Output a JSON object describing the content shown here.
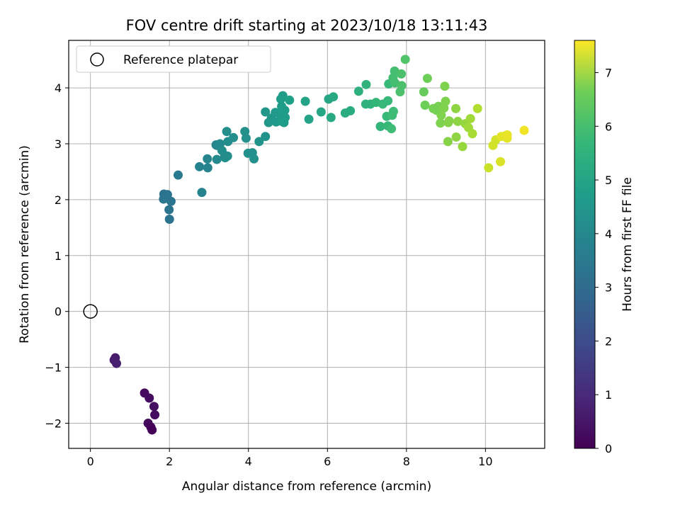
{
  "chart_data": {
    "type": "scatter",
    "title": "FOV centre drift starting at 2023/10/18 13:11:43",
    "xlabel": "Angular distance from reference (arcmin)",
    "ylabel": "Rotation from reference (arcmin)",
    "xlim": [
      -0.55,
      11.5
    ],
    "ylim": [
      -2.45,
      4.85
    ],
    "xticks": [
      0,
      2,
      4,
      6,
      8,
      10
    ],
    "yticks": [
      -2,
      -1,
      0,
      1,
      2,
      3,
      4
    ],
    "grid": true,
    "legend": {
      "placement": "top-left",
      "entries": [
        "Reference platepar"
      ]
    },
    "reference_point": {
      "x": 0,
      "y": 0,
      "label": "Reference platepar"
    },
    "colorbar": {
      "label": "Hours from first FF file",
      "colormap": "viridis",
      "range": [
        0,
        7.6
      ],
      "ticks": [
        0,
        1,
        2,
        3,
        4,
        5,
        6,
        7
      ]
    },
    "points": [
      [
        0.63,
        -0.83,
        0.55
      ],
      [
        0.6,
        -0.87,
        0.6
      ],
      [
        0.66,
        -0.93,
        0.65
      ],
      [
        1.37,
        -1.46,
        0.2
      ],
      [
        1.49,
        -1.55,
        0.25
      ],
      [
        1.61,
        -1.7,
        0.3
      ],
      [
        1.63,
        -1.85,
        0.25
      ],
      [
        1.46,
        -2.0,
        0.15
      ],
      [
        1.53,
        -2.07,
        0.1
      ],
      [
        1.56,
        -2.12,
        0.05
      ],
      [
        1.86,
        2.1,
        2.9
      ],
      [
        1.95,
        2.09,
        2.9
      ],
      [
        1.85,
        2.01,
        2.95
      ],
      [
        2.04,
        1.97,
        2.95
      ],
      [
        1.99,
        1.82,
        2.9
      ],
      [
        2.0,
        1.65,
        2.9
      ],
      [
        2.22,
        2.44,
        3.1
      ],
      [
        2.82,
        2.13,
        3.4
      ],
      [
        2.76,
        2.59,
        3.4
      ],
      [
        2.97,
        2.57,
        3.45
      ],
      [
        2.96,
        2.73,
        3.5
      ],
      [
        3.18,
        2.98,
        3.5
      ],
      [
        3.2,
        2.97,
        3.5
      ],
      [
        3.28,
        3.0,
        3.6
      ],
      [
        3.2,
        2.72,
        3.6
      ],
      [
        3.4,
        2.79,
        3.7
      ],
      [
        3.33,
        2.88,
        3.7
      ],
      [
        3.41,
        2.75,
        3.7
      ],
      [
        3.47,
        2.78,
        3.7
      ],
      [
        3.48,
        3.04,
        3.7
      ],
      [
        3.45,
        3.22,
        3.75
      ],
      [
        3.62,
        3.11,
        3.75
      ],
      [
        3.91,
        3.22,
        3.8
      ],
      [
        3.94,
        3.1,
        3.8
      ],
      [
        3.99,
        2.83,
        3.8
      ],
      [
        4.1,
        2.84,
        3.8
      ],
      [
        4.14,
        2.73,
        3.8
      ],
      [
        4.27,
        3.04,
        3.9
      ],
      [
        4.43,
        3.13,
        3.9
      ],
      [
        4.43,
        3.57,
        4.0
      ],
      [
        4.51,
        3.38,
        4.0
      ],
      [
        4.58,
        3.46,
        4.0
      ],
      [
        4.68,
        3.56,
        4.1
      ],
      [
        4.7,
        3.39,
        4.1
      ],
      [
        4.82,
        3.5,
        4.1
      ],
      [
        4.85,
        3.4,
        4.2
      ],
      [
        4.9,
        3.38,
        4.2
      ],
      [
        4.88,
        3.58,
        4.2
      ],
      [
        4.84,
        3.67,
        4.2
      ],
      [
        4.82,
        3.8,
        4.2
      ],
      [
        4.87,
        3.86,
        4.2
      ],
      [
        4.92,
        3.6,
        4.2
      ],
      [
        4.93,
        3.47,
        4.2
      ],
      [
        5.04,
        3.78,
        4.3
      ],
      [
        5.44,
        3.76,
        4.4
      ],
      [
        5.53,
        3.44,
        4.4
      ],
      [
        5.84,
        3.57,
        4.5
      ],
      [
        6.03,
        3.8,
        4.5
      ],
      [
        6.09,
        3.47,
        4.6
      ],
      [
        6.15,
        3.84,
        4.6
      ],
      [
        6.45,
        3.55,
        4.7
      ],
      [
        6.58,
        3.59,
        4.7
      ],
      [
        6.79,
        3.94,
        4.8
      ],
      [
        6.98,
        4.06,
        4.9
      ],
      [
        6.97,
        3.71,
        4.9
      ],
      [
        7.09,
        3.71,
        4.9
      ],
      [
        7.23,
        3.74,
        5.0
      ],
      [
        7.34,
        3.31,
        5.0
      ],
      [
        7.4,
        3.71,
        5.1
      ],
      [
        7.5,
        3.49,
        5.1
      ],
      [
        7.53,
        3.32,
        5.1
      ],
      [
        7.53,
        3.77,
        5.1
      ],
      [
        7.55,
        4.07,
        5.1
      ],
      [
        7.62,
        3.27,
        5.2
      ],
      [
        7.64,
        3.51,
        5.2
      ],
      [
        7.67,
        3.58,
        5.2
      ],
      [
        7.66,
        4.18,
        5.3
      ],
      [
        7.7,
        4.3,
        5.3
      ],
      [
        7.71,
        4.09,
        5.3
      ],
      [
        7.84,
        3.93,
        5.4
      ],
      [
        7.88,
        4.04,
        5.4
      ],
      [
        7.87,
        4.25,
        5.4
      ],
      [
        7.97,
        4.51,
        5.5
      ],
      [
        8.44,
        3.93,
        5.8
      ],
      [
        8.47,
        3.69,
        5.9
      ],
      [
        8.53,
        4.17,
        5.9
      ],
      [
        8.68,
        3.63,
        6.0
      ],
      [
        8.76,
        3.6,
        6.0
      ],
      [
        8.81,
        3.67,
        6.0
      ],
      [
        8.86,
        3.37,
        6.1
      ],
      [
        8.88,
        3.51,
        6.1
      ],
      [
        8.95,
        3.64,
        6.1
      ],
      [
        8.97,
        4.03,
        6.1
      ],
      [
        8.99,
        3.76,
        6.1
      ],
      [
        9.05,
        3.04,
        6.2
      ],
      [
        9.06,
        3.38,
        6.2
      ],
      [
        9.08,
        3.41,
        6.2
      ],
      [
        9.25,
        3.63,
        6.3
      ],
      [
        9.26,
        3.12,
        6.3
      ],
      [
        9.3,
        3.4,
        6.3
      ],
      [
        9.42,
        2.95,
        6.4
      ],
      [
        9.49,
        3.36,
        6.4
      ],
      [
        9.57,
        3.29,
        6.5
      ],
      [
        9.62,
        3.45,
        6.5
      ],
      [
        9.67,
        3.18,
        6.6
      ],
      [
        9.8,
        3.63,
        6.7
      ],
      [
        10.08,
        2.57,
        7.0
      ],
      [
        10.19,
        2.97,
        7.1
      ],
      [
        10.26,
        3.07,
        7.1
      ],
      [
        10.38,
        2.68,
        7.2
      ],
      [
        10.4,
        3.13,
        7.3
      ],
      [
        10.5,
        3.14,
        7.3
      ],
      [
        10.55,
        3.1,
        7.3
      ],
      [
        10.55,
        3.16,
        7.35
      ],
      [
        10.98,
        3.24,
        7.45
      ]
    ]
  }
}
